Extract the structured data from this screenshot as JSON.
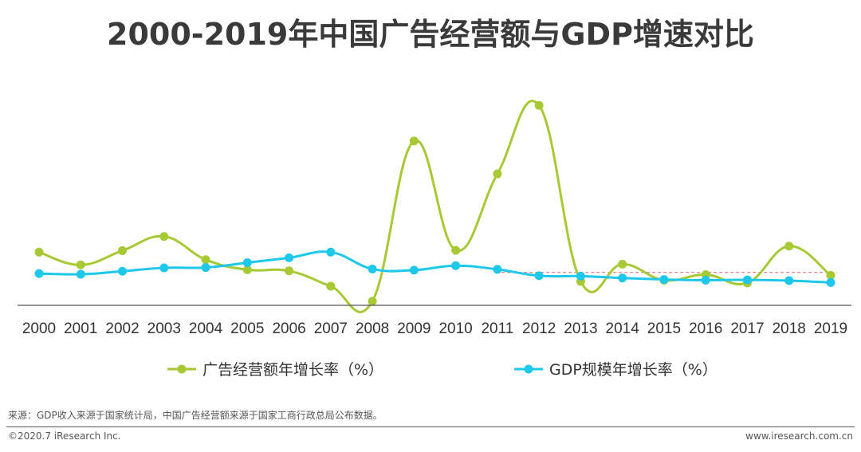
{
  "chart_data": {
    "type": "line",
    "title": "2000-2019年中国广告经营额与GDP增速对比",
    "categories": [
      "2000",
      "2001",
      "2002",
      "2003",
      "2004",
      "2005",
      "2006",
      "2007",
      "2008",
      "2009",
      "2010",
      "2011",
      "2012",
      "2013",
      "2014",
      "2015",
      "2016",
      "2017",
      "2018",
      "2019"
    ],
    "series": [
      {
        "name": "广告经营额年增长率（%）",
        "color": "#a6c934",
        "values": [
          14.2,
          10.8,
          14.6,
          18.4,
          12.2,
          9.5,
          9.2,
          5.1,
          1.1,
          43.9,
          14.7,
          35.1,
          53.4,
          6.4,
          11.0,
          6.7,
          8.2,
          6.0,
          15.8,
          8.0
        ]
      },
      {
        "name": "GDP规模年增长率（%）",
        "color": "#1ec8ea",
        "values": [
          8.5,
          8.3,
          9.1,
          10.0,
          10.1,
          11.4,
          12.7,
          14.2,
          9.7,
          9.4,
          10.6,
          9.6,
          7.9,
          7.8,
          7.3,
          6.9,
          6.7,
          6.8,
          6.6,
          6.1
        ]
      }
    ],
    "ylim": [
      0,
      56
    ],
    "xlabel": "",
    "ylabel": "",
    "legend": "bottom-center"
  },
  "source_note": "来源：GDP收入来源于国家统计局，中国广告经营额来源于国家工商行政总局公布数据。",
  "copyright": "©2020.7 iResearch Inc.",
  "website": "www.iresearch.com.cn",
  "colors": {
    "accent_line": "#e8737a",
    "axis": "#555555"
  }
}
